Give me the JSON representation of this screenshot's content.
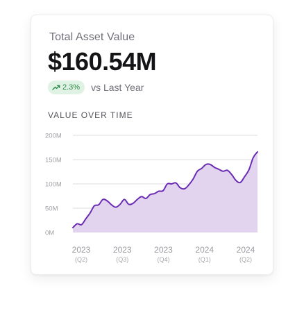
{
  "card": {
    "label": "Total Asset Value",
    "value": "$160.54M",
    "change_pct": "2.3%",
    "change_compare": "vs Last Year",
    "section_title": "VALUE OVER TIME"
  },
  "colors": {
    "accent_line": "#6a2bb3",
    "area_fill": "#e2d4ef",
    "positive_bg": "#dff2e4",
    "positive_text": "#2e8a48",
    "grid": "#dedee2"
  },
  "chart_data": {
    "type": "area",
    "title": "VALUE OVER TIME",
    "y_unit": "M",
    "ylim": [
      0,
      200
    ],
    "y_ticks": [
      {
        "value": 200,
        "label": "200M"
      },
      {
        "value": 150,
        "label": "150M"
      },
      {
        "value": 100,
        "label": "100M"
      },
      {
        "value": 50,
        "label": "50M"
      },
      {
        "value": 0,
        "label": "0M"
      }
    ],
    "x_ticks": [
      {
        "year": "2023",
        "quarter": "(Q2)"
      },
      {
        "year": "2023",
        "quarter": "(Q3)"
      },
      {
        "year": "2023",
        "quarter": "(Q4)"
      },
      {
        "year": "2024",
        "quarter": "(Q1)"
      },
      {
        "year": "2024",
        "quarter": "(Q2)"
      }
    ],
    "grid": true,
    "series": [
      {
        "values": [
          10,
          18,
          16,
          28,
          40,
          55,
          57,
          68,
          65,
          57,
          52,
          58,
          68,
          58,
          60,
          68,
          74,
          70,
          78,
          80,
          85,
          86,
          100,
          100,
          102,
          92,
          90,
          98,
          110,
          126,
          132,
          140,
          140,
          134,
          130,
          126,
          128,
          119,
          107,
          103,
          115,
          129,
          154,
          166
        ]
      }
    ]
  }
}
